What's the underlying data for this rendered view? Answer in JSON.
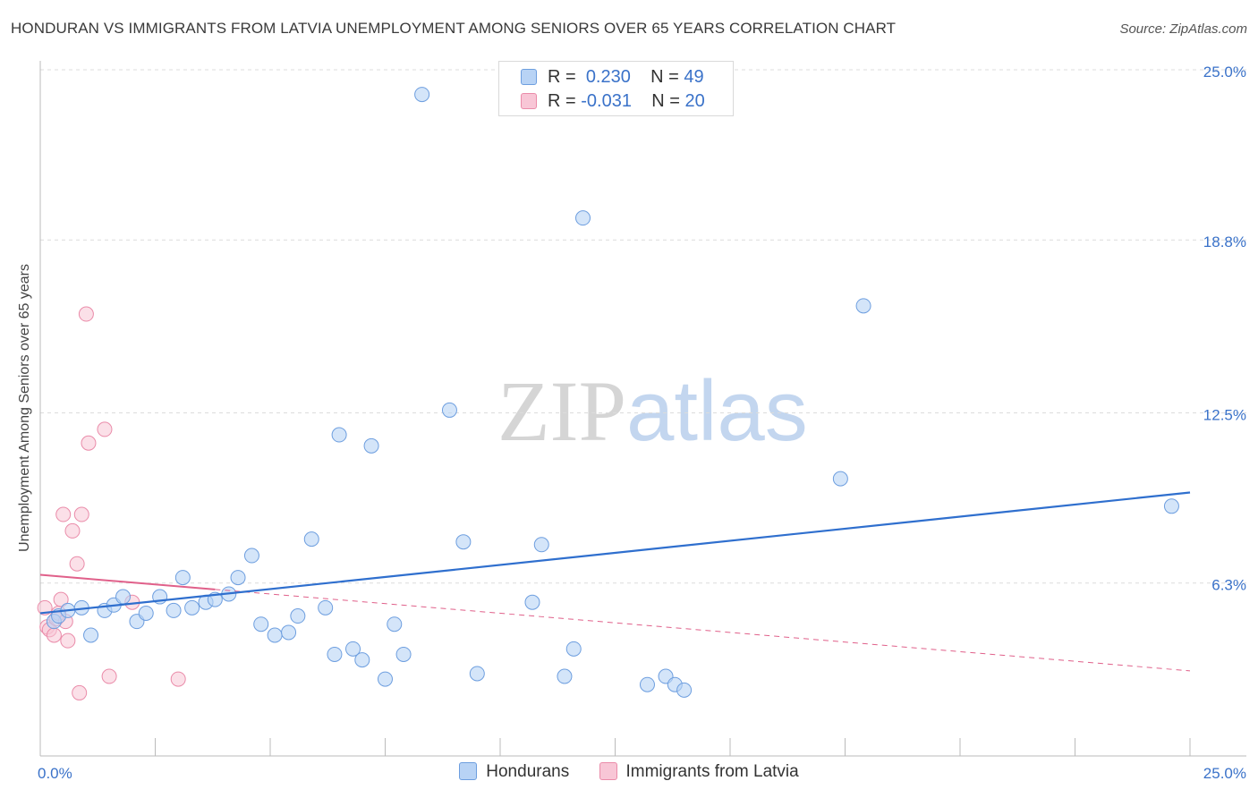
{
  "title": "HONDURAN VS IMMIGRANTS FROM LATVIA UNEMPLOYMENT AMONG SENIORS OVER 65 YEARS CORRELATION CHART",
  "source": "Source: ZipAtlas.com",
  "watermark": {
    "zip": "ZIP",
    "atlas": "atlas"
  },
  "legend_top": {
    "r_label": "R =",
    "n_label": "N =",
    "rows": [
      {
        "r": "0.230",
        "n": "49"
      },
      {
        "r": "-0.031",
        "n": "20"
      }
    ]
  },
  "colors": {
    "hondurans_fill": "#b8d3f5",
    "hondurans_stroke": "#6d9edf",
    "hondurans_line": "#2f6fce",
    "latvia_fill": "#f8c6d6",
    "latvia_stroke": "#ea8ba9",
    "latvia_line": "#e0608a",
    "tick_label": "#3a72c9"
  },
  "chart_data": {
    "type": "scatter",
    "title": "HONDURAN VS IMMIGRANTS FROM LATVIA UNEMPLOYMENT AMONG SENIORS OVER 65 YEARS CORRELATION CHART",
    "xlabel": "",
    "ylabel": "Unemployment Among Seniors over 65 years",
    "xlim": [
      0,
      25
    ],
    "ylim": [
      0,
      25.0
    ],
    "x_tick_labels": [
      "0.0%",
      "25.0%"
    ],
    "y_ticks": [
      6.3,
      12.5,
      18.8,
      25.0
    ],
    "y_tick_labels": [
      "6.3%",
      "12.5%",
      "18.8%",
      "25.0%"
    ],
    "grid": "horizontal dashed",
    "legend_position": "bottom",
    "series": [
      {
        "name": "Hondurans",
        "r": 0.23,
        "n": 49,
        "trend": {
          "x": [
            0,
            25
          ],
          "y": [
            5.2,
            9.6
          ],
          "style": "solid"
        },
        "points": [
          [
            0.3,
            4.9
          ],
          [
            0.4,
            5.1
          ],
          [
            0.6,
            5.3
          ],
          [
            0.9,
            5.4
          ],
          [
            1.1,
            4.4
          ],
          [
            1.4,
            5.3
          ],
          [
            1.6,
            5.5
          ],
          [
            1.8,
            5.8
          ],
          [
            2.1,
            4.9
          ],
          [
            2.3,
            5.2
          ],
          [
            2.6,
            5.8
          ],
          [
            2.9,
            5.3
          ],
          [
            3.1,
            6.5
          ],
          [
            3.3,
            5.4
          ],
          [
            3.6,
            5.6
          ],
          [
            3.8,
            5.7
          ],
          [
            4.1,
            5.9
          ],
          [
            4.3,
            6.5
          ],
          [
            4.6,
            7.3
          ],
          [
            4.8,
            4.8
          ],
          [
            5.1,
            4.4
          ],
          [
            5.4,
            4.5
          ],
          [
            5.6,
            5.1
          ],
          [
            5.9,
            7.9
          ],
          [
            6.2,
            5.4
          ],
          [
            6.4,
            3.7
          ],
          [
            6.5,
            11.7
          ],
          [
            6.8,
            3.9
          ],
          [
            7.0,
            3.5
          ],
          [
            7.2,
            11.3
          ],
          [
            7.5,
            2.8
          ],
          [
            7.7,
            4.8
          ],
          [
            7.9,
            3.7
          ],
          [
            8.3,
            24.1
          ],
          [
            8.9,
            12.6
          ],
          [
            9.2,
            7.8
          ],
          [
            9.5,
            3.0
          ],
          [
            10.7,
            5.6
          ],
          [
            10.9,
            7.7
          ],
          [
            11.4,
            2.9
          ],
          [
            11.6,
            3.9
          ],
          [
            11.8,
            19.6
          ],
          [
            13.2,
            2.6
          ],
          [
            13.6,
            2.9
          ],
          [
            13.8,
            2.6
          ],
          [
            14.0,
            2.4
          ],
          [
            17.4,
            10.1
          ],
          [
            17.9,
            16.4
          ],
          [
            24.6,
            9.1
          ]
        ]
      },
      {
        "name": "Immigrants from Latvia",
        "r": -0.031,
        "n": 20,
        "trend": {
          "x": [
            0,
            25
          ],
          "y": [
            6.6,
            3.1
          ],
          "style": "solid-then-dashed",
          "solid_until": 3.8
        },
        "points": [
          [
            0.1,
            5.4
          ],
          [
            0.15,
            4.7
          ],
          [
            0.2,
            4.6
          ],
          [
            0.3,
            4.4
          ],
          [
            0.35,
            5.0
          ],
          [
            0.4,
            5.2
          ],
          [
            0.45,
            5.7
          ],
          [
            0.5,
            8.8
          ],
          [
            0.55,
            4.9
          ],
          [
            0.6,
            4.2
          ],
          [
            0.7,
            8.2
          ],
          [
            0.8,
            7.0
          ],
          [
            0.85,
            2.3
          ],
          [
            0.9,
            8.8
          ],
          [
            1.0,
            16.1
          ],
          [
            1.05,
            11.4
          ],
          [
            1.4,
            11.9
          ],
          [
            1.5,
            2.9
          ],
          [
            2.0,
            5.6
          ],
          [
            3.0,
            2.8
          ]
        ]
      }
    ]
  }
}
